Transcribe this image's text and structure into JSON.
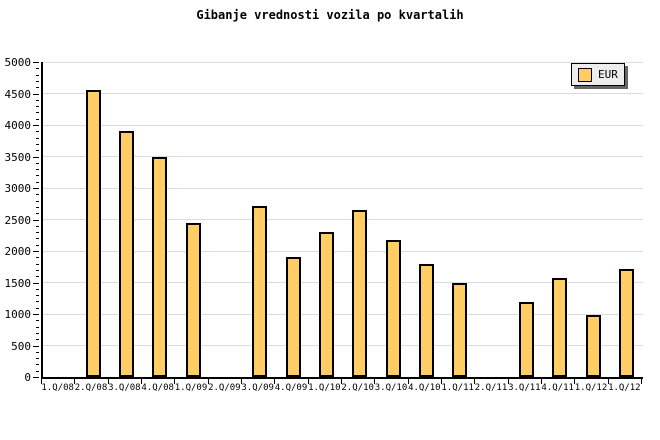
{
  "chart_data": {
    "type": "bar",
    "title": "Gibanje vrednosti vozila po kvartalih",
    "legend": [
      "EUR"
    ],
    "legend_position": "top-right",
    "categories": [
      "1.Q/08",
      "2.Q/08",
      "3.Q/08",
      "4.Q/08",
      "1.Q/09",
      "2.Q/09",
      "3.Q/09",
      "4.Q/09",
      "1.Q/10",
      "2.Q/10",
      "3.Q/10",
      "4.Q/10",
      "1.Q/11",
      "2.Q/11",
      "3.Q/11",
      "4.Q/11",
      "1.Q/12",
      "1.Q/12"
    ],
    "values": [
      null,
      4550,
      3900,
      3500,
      2440,
      null,
      2710,
      1910,
      2300,
      2650,
      2180,
      1790,
      1500,
      null,
      1190,
      1570,
      980,
      1710
    ],
    "ylim": [
      0,
      5000
    ],
    "y_ticks": [
      0,
      500,
      1000,
      1500,
      2000,
      2500,
      3000,
      3500,
      4000,
      4500,
      5000
    ],
    "y_minor_step": 100,
    "grid": "horizontal",
    "xlabel": "",
    "ylabel": "",
    "colors": {
      "bar_fill": "#FFCC66",
      "bar_border": "#000000",
      "grid_line": "#DCDCDC",
      "axis": "#000000",
      "legend_bg": "#EDEDED",
      "legend_shadow": "#666666",
      "background": "#FFFFFF"
    }
  }
}
